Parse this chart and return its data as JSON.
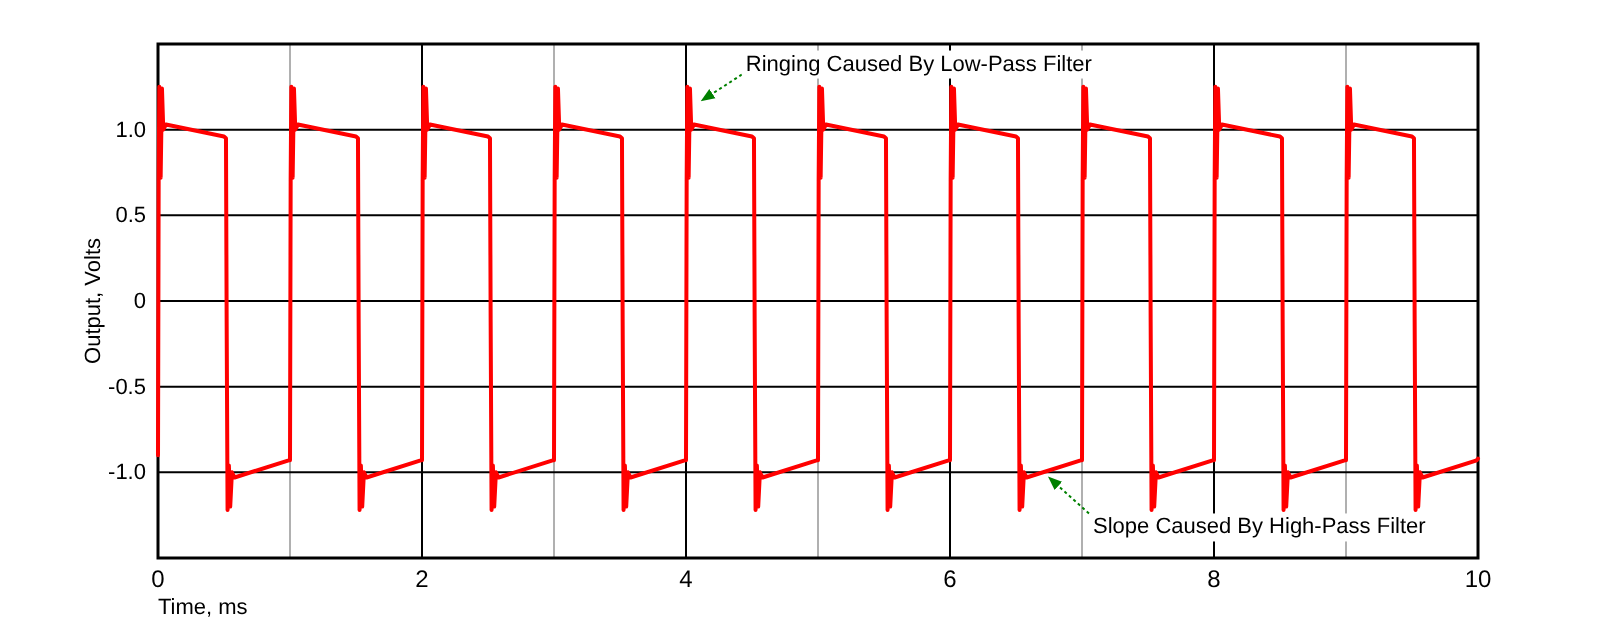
{
  "chart_data": {
    "type": "line",
    "xlabel": "Time, ms",
    "ylabel": "Output, Volts",
    "xlim": [
      0,
      10
    ],
    "ylim": [
      -1.5,
      1.5
    ],
    "xticks": [
      0,
      {
        "value": 1,
        "label": null
      },
      2,
      {
        "value": 3,
        "label": null
      },
      4,
      {
        "value": 5,
        "label": null
      },
      6,
      {
        "value": 7,
        "label": null
      },
      8,
      {
        "value": 9,
        "label": null
      },
      10
    ],
    "yticks": [
      {
        "value": -1,
        "label": "-1.0"
      },
      -0.5,
      0,
      0.5,
      {
        "value": 1,
        "label": "1.0"
      }
    ],
    "grid": true,
    "marker": "none",
    "line_style": "solid",
    "annotations": [
      {
        "text": "Ringing Caused By Low-Pass Filter",
        "x": 4.12,
        "y": 1.17
      },
      {
        "text": "Slope Caused By High-Pass Filter",
        "x": 6.75,
        "y": -1.03
      }
    ],
    "series": [
      {
        "color": "#ff0000",
        "x": [
          0,
          0.005,
          0.01,
          0.02,
          0.03,
          0.04,
          0.06,
          0.5,
          0.515,
          0.52,
          0.527,
          0.537,
          0.547,
          0.56,
          0.58,
          0.99,
          1,
          1.005,
          1.01,
          1.02,
          1.03,
          1.04,
          1.06,
          1.5,
          1.515,
          1.52,
          1.527,
          1.537,
          1.547,
          1.56,
          1.58,
          1.99,
          2,
          2.005,
          2.01,
          2.02,
          2.03,
          2.04,
          2.06,
          2.5,
          2.515,
          2.52,
          2.527,
          2.537,
          2.547,
          2.56,
          2.58,
          2.99,
          3,
          3.005,
          3.01,
          3.02,
          3.03,
          3.04,
          3.06,
          3.5,
          3.515,
          3.52,
          3.527,
          3.537,
          3.547,
          3.56,
          3.58,
          3.99,
          4,
          4.005,
          4.01,
          4.02,
          4.03,
          4.04,
          4.06,
          4.5,
          4.515,
          4.52,
          4.527,
          4.537,
          4.547,
          4.56,
          4.58,
          4.99,
          5,
          5.005,
          5.01,
          5.02,
          5.03,
          5.04,
          5.06,
          5.5,
          5.515,
          5.52,
          5.527,
          5.537,
          5.547,
          5.56,
          5.58,
          5.99,
          6,
          6.005,
          6.01,
          6.02,
          6.03,
          6.04,
          6.06,
          6.5,
          6.515,
          6.52,
          6.527,
          6.537,
          6.547,
          6.56,
          6.58,
          6.99,
          7,
          7.005,
          7.01,
          7.02,
          7.03,
          7.04,
          7.06,
          7.5,
          7.515,
          7.52,
          7.527,
          7.537,
          7.547,
          7.56,
          7.58,
          7.99,
          8,
          8.005,
          8.01,
          8.02,
          8.03,
          8.04,
          8.06,
          8.5,
          8.515,
          8.52,
          8.527,
          8.537,
          8.547,
          8.56,
          8.58,
          8.99,
          9,
          9.005,
          9.01,
          9.02,
          9.03,
          9.04,
          9.06,
          9.5,
          9.515,
          9.52,
          9.527,
          9.537,
          9.547,
          9.56,
          9.58,
          9.99,
          10
        ],
        "values": [
          -0.9,
          0.7,
          1.25,
          0.72,
          1.24,
          1.0,
          1.03,
          0.96,
          0.95,
          -0.1,
          -1.22,
          -0.96,
          -1.2,
          -1.0,
          -1.03,
          -0.93,
          -0.93,
          0.7,
          1.25,
          0.72,
          1.24,
          1.0,
          1.03,
          0.96,
          0.95,
          -0.1,
          -1.22,
          -0.96,
          -1.2,
          -1.0,
          -1.03,
          -0.93,
          -0.93,
          0.7,
          1.25,
          0.72,
          1.24,
          1.0,
          1.03,
          0.96,
          0.95,
          -0.1,
          -1.22,
          -0.96,
          -1.2,
          -1.0,
          -1.03,
          -0.93,
          -0.93,
          0.7,
          1.25,
          0.72,
          1.24,
          1.0,
          1.03,
          0.96,
          0.95,
          -0.1,
          -1.22,
          -0.96,
          -1.2,
          -1.0,
          -1.03,
          -0.93,
          -0.93,
          0.7,
          1.25,
          0.72,
          1.24,
          1.0,
          1.03,
          0.96,
          0.95,
          -0.1,
          -1.22,
          -0.96,
          -1.2,
          -1.0,
          -1.03,
          -0.93,
          -0.93,
          0.7,
          1.25,
          0.72,
          1.24,
          1.0,
          1.03,
          0.96,
          0.95,
          -0.1,
          -1.22,
          -0.96,
          -1.2,
          -1.0,
          -1.03,
          -0.93,
          -0.93,
          0.7,
          1.25,
          0.72,
          1.24,
          1.0,
          1.03,
          0.96,
          0.95,
          -0.1,
          -1.22,
          -0.96,
          -1.2,
          -1.0,
          -1.03,
          -0.93,
          -0.93,
          0.7,
          1.25,
          0.72,
          1.24,
          1.0,
          1.03,
          0.96,
          0.95,
          -0.1,
          -1.22,
          -0.96,
          -1.2,
          -1.0,
          -1.03,
          -0.93,
          -0.93,
          0.7,
          1.25,
          0.72,
          1.24,
          1.0,
          1.03,
          0.96,
          0.95,
          -0.1,
          -1.22,
          -0.96,
          -1.2,
          -1.0,
          -1.03,
          -0.93,
          -0.93,
          0.7,
          1.25,
          0.72,
          1.24,
          1.0,
          1.03,
          0.96,
          0.95,
          -0.1,
          -1.22,
          -0.96,
          -1.2,
          -1.0,
          -1.03,
          -0.93,
          -0.92
        ]
      }
    ]
  }
}
